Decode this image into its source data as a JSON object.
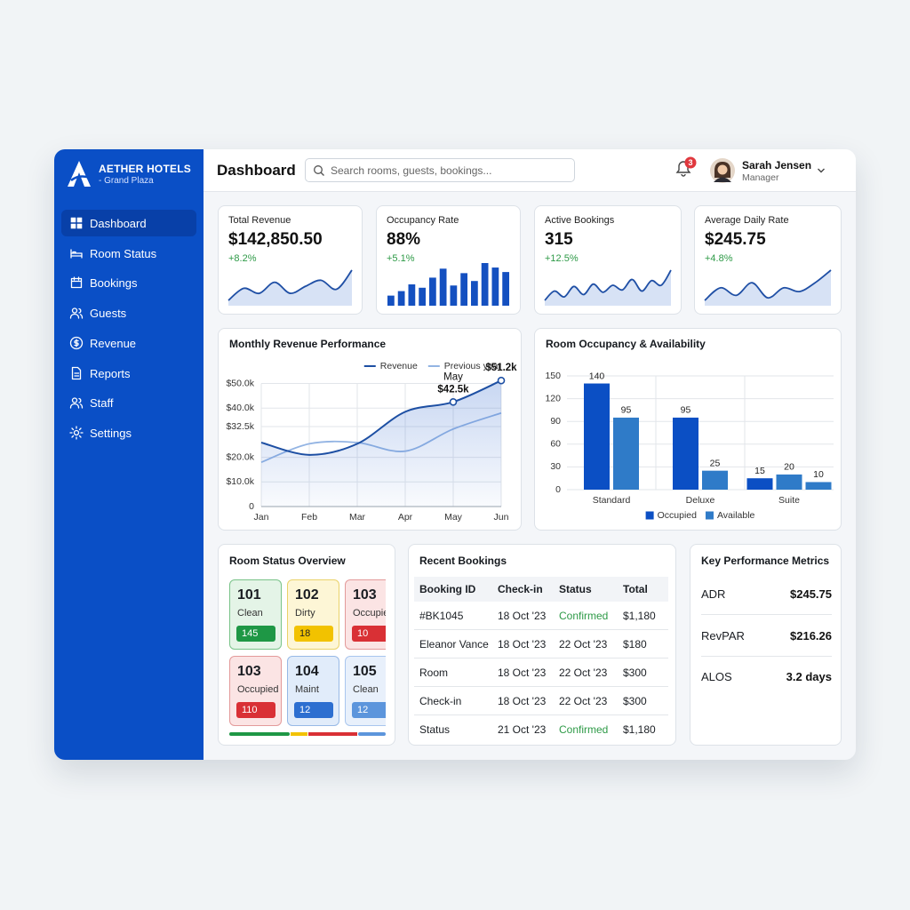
{
  "brand": {
    "name": "AETHER HOTELS",
    "location": "- Grand Plaza"
  },
  "nav": {
    "items": [
      "Dashboard",
      "Room Status",
      "Bookings",
      "Guests",
      "Revenue",
      "Reports",
      "Staff",
      "Settings"
    ],
    "active": 0
  },
  "header": {
    "title": "Dashboard",
    "search_placeholder": "Search rooms, guests, bookings...",
    "notifications": 3,
    "user": {
      "name": "Sarah Jensen",
      "role": "Manager"
    }
  },
  "kpis": [
    {
      "label": "Total Revenue",
      "value": "$142,850.50",
      "change": "+8.2%",
      "sparkline": {
        "type": "line",
        "values": [
          10,
          22,
          17,
          28,
          17,
          24,
          30,
          21,
          40
        ]
      }
    },
    {
      "label": "Occupancy Rate",
      "value": "88%",
      "change": "+5.1%",
      "sparkline": {
        "type": "bar",
        "values": [
          9,
          13,
          19,
          16,
          25,
          33,
          18,
          29,
          22,
          38,
          34,
          30
        ]
      }
    },
    {
      "label": "Active Bookings",
      "value": "315",
      "change": "+12.5%",
      "sparkline": {
        "type": "line",
        "values": [
          6,
          14,
          9,
          18,
          11,
          20,
          13,
          19,
          15,
          24,
          14,
          23,
          19,
          32
        ]
      }
    },
    {
      "label": "Average Daily Rate",
      "value": "$245.75",
      "change": "+4.8%",
      "sparkline": {
        "type": "line",
        "values": [
          10,
          20,
          14,
          24,
          12,
          20,
          17,
          24,
          34
        ]
      }
    }
  ],
  "chart_data": [
    {
      "type": "line",
      "title": "Monthly Revenue Performance",
      "categories": [
        "Jan",
        "Feb",
        "Mar",
        "Apr",
        "May",
        "Jun"
      ],
      "series": [
        {
          "name": "Revenue",
          "color": "#1d4fa3",
          "values": [
            26000,
            21000,
            25500,
            38500,
            42500,
            51200
          ],
          "value_labels": [
            null,
            null,
            null,
            null,
            "$42.5k",
            "$51.2k"
          ]
        },
        {
          "name": "Previous year",
          "color": "#93b4e3",
          "values": [
            18000,
            25500,
            26000,
            22500,
            31500,
            38000
          ]
        }
      ],
      "highlight": 4,
      "ylim": [
        0,
        52000
      ],
      "yticks": [
        0,
        {
          "value": 10000,
          "label": "$10.0k"
        },
        {
          "value": 20000,
          "label": "$20.0k"
        },
        {
          "value": 32500,
          "label": "$32.5k"
        },
        {
          "value": 40000,
          "label": "$40.0k"
        },
        {
          "value": 50000,
          "label": "$50.0k"
        }
      ],
      "grid": true,
      "legend": "top-right"
    },
    {
      "type": "bar",
      "title": "Room Occupancy & Availability",
      "categories": [
        "Standard",
        "Deluxe",
        "Suite"
      ],
      "series": [
        {
          "name": "Occupied",
          "color": "#0b4fc4",
          "values": [
            140,
            95,
            15
          ]
        },
        {
          "name": "Available",
          "color": "#2f7bc8",
          "values": [
            95,
            25,
            20
          ]
        },
        {
          "color": "#2f7bc8",
          "values": [
            null,
            null,
            10
          ]
        }
      ],
      "ylim": [
        0,
        150
      ],
      "yticks": [
        0,
        30,
        60,
        90,
        120,
        150
      ],
      "grid": true,
      "legend": "bottom"
    }
  ],
  "room_status": {
    "title": "Room Status Overview",
    "rooms": [
      {
        "number": "101",
        "status": "Clean",
        "count": 145,
        "color": "green"
      },
      {
        "number": "102",
        "status": "Dirty",
        "count": 18,
        "color": "yellow"
      },
      {
        "number": "103",
        "status": "Occupied",
        "count": 10,
        "color": "red"
      },
      {
        "number": "103",
        "status": "Occupied",
        "count": 110,
        "color": "red"
      },
      {
        "number": "104",
        "status": "Maint",
        "count": 12,
        "color": "blue"
      },
      {
        "number": "105",
        "status": "Clean",
        "count": 12,
        "color": "lightblue"
      }
    ]
  },
  "recent_bookings": {
    "title": "Recent Bookings",
    "columns": [
      "Booking ID",
      "Check-in",
      "Status",
      "Total"
    ],
    "rows": [
      [
        "#BK1045",
        "18 Oct '23",
        "Confirmed",
        "$1,180"
      ],
      [
        "Eleanor Vance",
        "18 Oct '23",
        "22 Oct '23",
        "$180"
      ],
      [
        "Room",
        "18 Oct '23",
        "22 Oct '23",
        "$300"
      ],
      [
        "Check-in",
        "18 Oct '23",
        "22 Oct '23",
        "$300"
      ],
      [
        "Status",
        "21 Oct '23",
        "Confirmed",
        "$1,180"
      ]
    ]
  },
  "key_metrics": {
    "title": "Key Performance Metrics",
    "items": [
      {
        "label": "ADR",
        "value": "$245.75"
      },
      {
        "label": "RevPAR",
        "value": "$216.26"
      },
      {
        "label": "ALOS",
        "value": "3.2 days"
      }
    ]
  }
}
